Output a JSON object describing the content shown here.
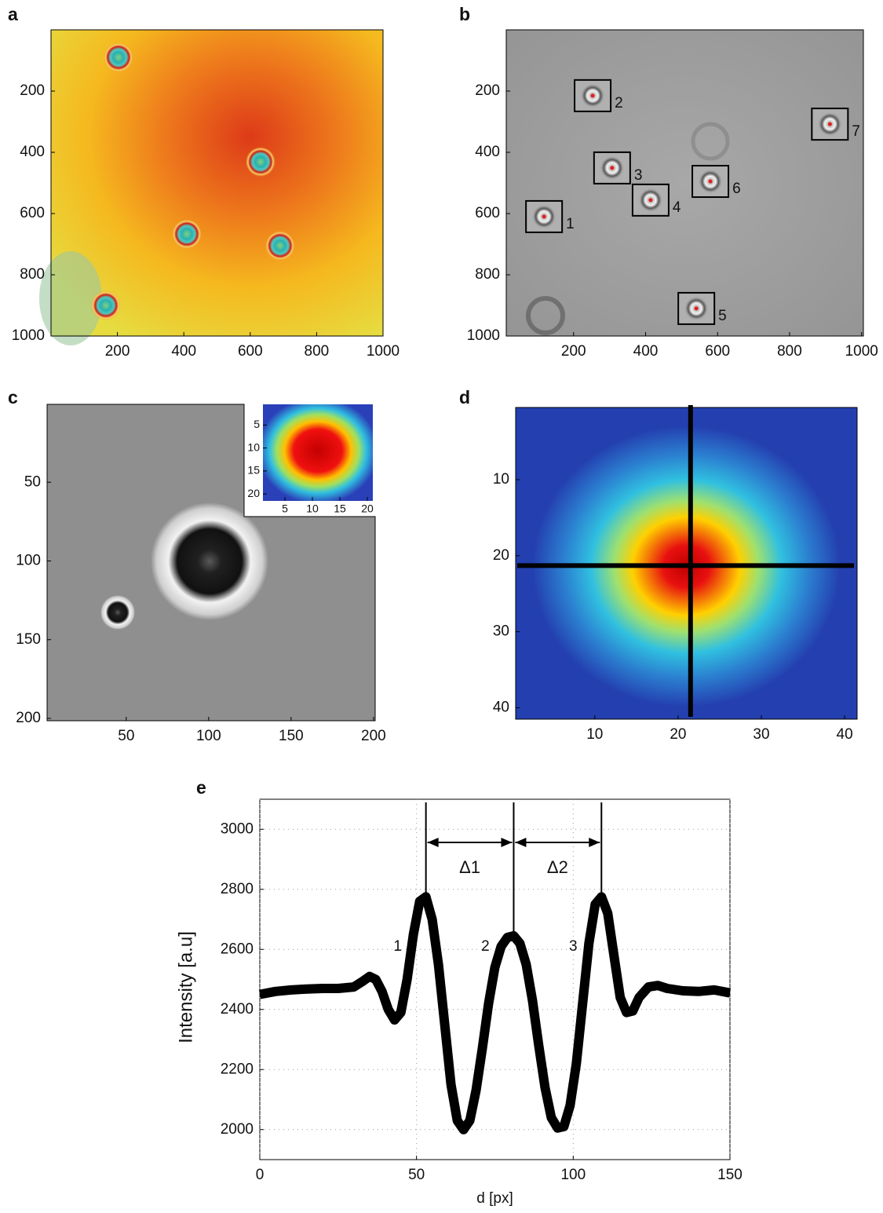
{
  "chart_data": [
    {
      "panel": "a",
      "type": "image",
      "xlim": [
        0,
        1000
      ],
      "ylim": [
        0,
        1000
      ],
      "y_reversed": true,
      "xticks": [
        200,
        400,
        600,
        800,
        1000
      ],
      "yticks": [
        200,
        400,
        600,
        800,
        1000
      ],
      "particles": {
        "x": [
          203,
          631,
          409,
          690,
          165
        ],
        "y": [
          90,
          431,
          667,
          705,
          900
        ]
      }
    },
    {
      "panel": "b",
      "type": "image",
      "xlim": [
        13,
        1005
      ],
      "ylim": [
        0,
        1000
      ],
      "y_reversed": true,
      "xticks": [
        200,
        400,
        600,
        800,
        1000
      ],
      "yticks": [
        200,
        400,
        600,
        800,
        1000
      ],
      "particles": {
        "x": [
          118,
          253,
          307,
          414,
          541,
          580,
          912
        ],
        "y": [
          610,
          215,
          451,
          556,
          910,
          495,
          308
        ],
        "labels": [
          "1",
          "2",
          "3",
          "4",
          "5",
          "6",
          "7"
        ]
      }
    },
    {
      "panel": "c",
      "type": "image",
      "xlim": [
        2,
        201
      ],
      "ylim": [
        0.5,
        201.5
      ],
      "y_reversed": true,
      "xticks": [
        50,
        100,
        150,
        200
      ],
      "yticks": [
        50,
        100,
        150,
        200
      ]
    },
    {
      "type": "image",
      "xlim": [
        1,
        21
      ],
      "ylim": [
        0.5,
        21.5
      ],
      "y_reversed": true,
      "xticks": [
        5,
        10,
        15,
        20
      ],
      "yticks": [
        5,
        10,
        15,
        20
      ]
    },
    {
      "panel": "d",
      "type": "image",
      "xlim": [
        0.5,
        41.5
      ],
      "ylim": [
        0.5,
        41.5
      ],
      "y_reversed": true,
      "xticks": [
        10,
        20,
        30,
        40
      ],
      "yticks": [
        10,
        20,
        30,
        40
      ],
      "crosshair": {
        "x": 21.5,
        "y": 21.3
      }
    },
    {
      "panel": "e",
      "type": "line",
      "color": "#000000",
      "xlim": [
        0,
        150
      ],
      "ylim": [
        1900,
        3100
      ],
      "xticks": [
        0,
        50,
        100,
        150
      ],
      "yticks": [
        2000,
        2200,
        2400,
        2600,
        2800,
        3000
      ],
      "grid": true,
      "xlabel": "d [px]",
      "ylabel": "Intensity [a.u]",
      "x": [
        0,
        5,
        10,
        15,
        20,
        25,
        30,
        33,
        35,
        37,
        39,
        41,
        43,
        45,
        47,
        49,
        51,
        53,
        55,
        57,
        59,
        61,
        63,
        65,
        67,
        69,
        71,
        73,
        75,
        77,
        79,
        81,
        83,
        85,
        87,
        89,
        91,
        93,
        95,
        97,
        99,
        101,
        103,
        105,
        107,
        109,
        111,
        113,
        115,
        117,
        119,
        121,
        124,
        127,
        130,
        135,
        140,
        145,
        150
      ],
      "values": [
        2450,
        2460,
        2465,
        2468,
        2470,
        2470,
        2475,
        2495,
        2510,
        2500,
        2460,
        2400,
        2365,
        2390,
        2500,
        2650,
        2760,
        2775,
        2700,
        2550,
        2350,
        2150,
        2030,
        2000,
        2030,
        2130,
        2270,
        2420,
        2540,
        2610,
        2640,
        2645,
        2620,
        2550,
        2430,
        2280,
        2140,
        2040,
        2005,
        2010,
        2080,
        2220,
        2420,
        2620,
        2750,
        2775,
        2720,
        2580,
        2440,
        2390,
        2395,
        2440,
        2475,
        2480,
        2470,
        2462,
        2460,
        2465,
        2455
      ],
      "peak_lines": [
        53,
        81,
        109
      ],
      "spacings": [
        "Δ1",
        "Δ2"
      ],
      "peak_labels": [
        "1",
        "2",
        "3"
      ]
    }
  ]
}
